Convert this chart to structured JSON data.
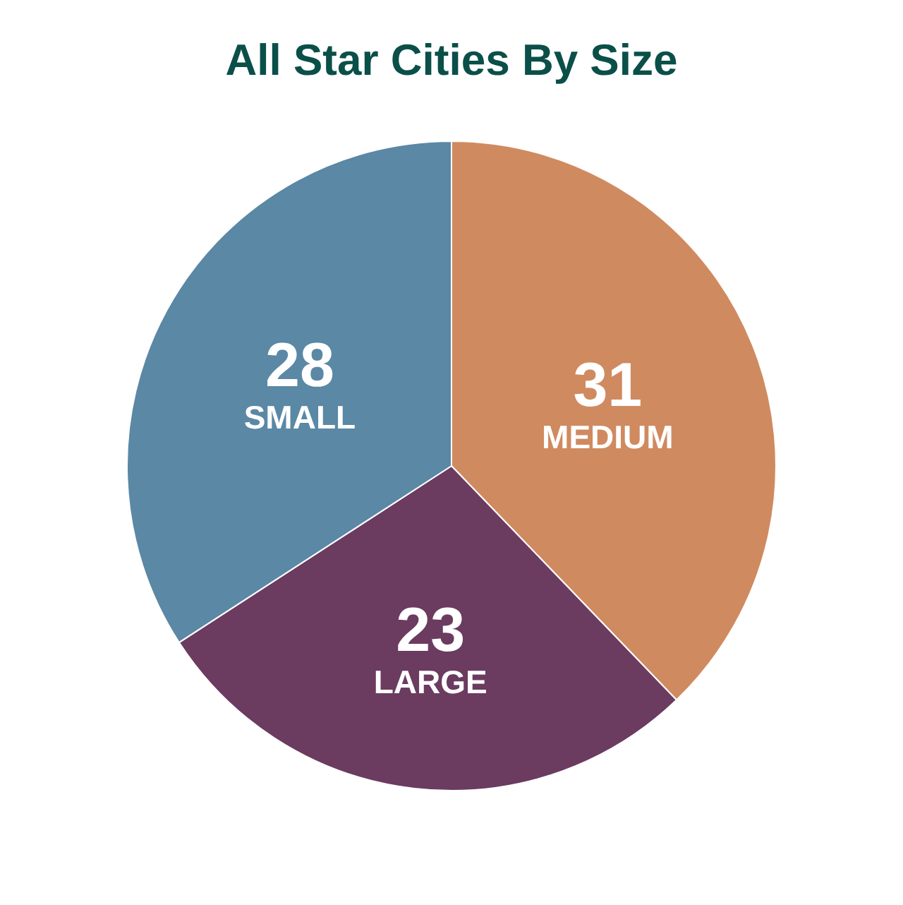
{
  "chart_data": {
    "type": "pie",
    "title": "All Star Cities By Size",
    "categories": [
      "MEDIUM",
      "LARGE",
      "SMALL"
    ],
    "values": [
      31,
      23,
      28
    ],
    "colors": [
      "#d08a60",
      "#6b3b60",
      "#5a88a5"
    ],
    "data_labels": true,
    "legend": false
  }
}
